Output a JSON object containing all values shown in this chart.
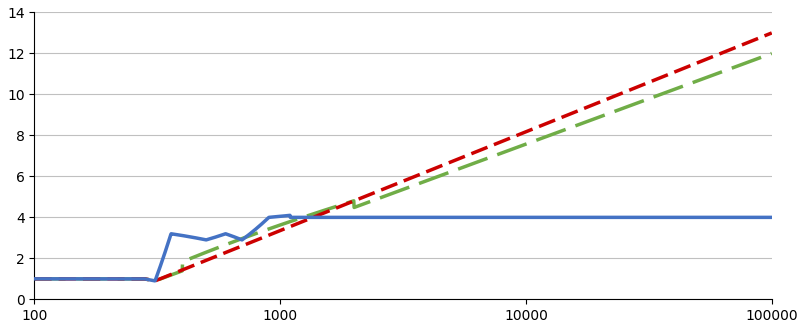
{
  "xmin": 100,
  "xmax": 100000,
  "ymin": 0,
  "ymax": 14,
  "yticks": [
    0,
    2,
    4,
    6,
    8,
    10,
    12,
    14
  ],
  "xticks": [
    100,
    1000,
    10000,
    100000
  ],
  "xtick_labels": [
    "100",
    "1000",
    "10000",
    "100000"
  ],
  "blue_color": "#4472C4",
  "red_color": "#CC0000",
  "green_color": "#70AD47",
  "background_color": "#FFFFFF",
  "grid_color": "#C0C0C0"
}
